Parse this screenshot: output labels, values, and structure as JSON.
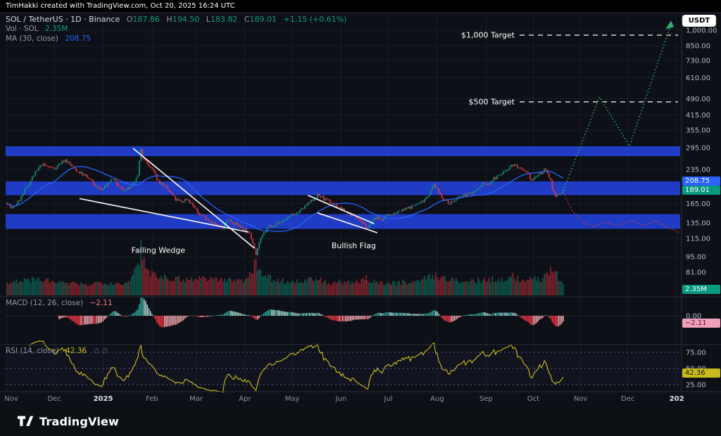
{
  "attribution": "TimHakki created with TradingView.com, Oct 20, 2025 16:24 UTC",
  "currency_button": "USDT",
  "legend": {
    "symbol_line": "SOL / TetherUS · 1D · Binance",
    "o_label": "O",
    "o": "187.86",
    "h_label": "H",
    "h": "194.50",
    "l_label": "L",
    "l": "183.82",
    "c_label": "C",
    "c": "189.01",
    "change": "+1.15 (+0.61%)",
    "vol_label": "Vol · SOL",
    "vol_value": "2.35M",
    "ma_label": "MA (30, close)",
    "ma_value": "208.75",
    "macd_label": "MACD (12, 26, close)",
    "macd_value": "−2.11",
    "rsi_label": "RSI (14, close)",
    "rsi_value": "42.36",
    "rsi_extra": "∅ ∅"
  },
  "badges": {
    "ma": "208.75",
    "close": "189.01",
    "volume": "2.35M",
    "macd_zero": "0.00",
    "macd": "−2.11",
    "rsi": "42.36"
  },
  "footer": {
    "brand": "TradingView"
  },
  "chart_data": {
    "type": "candlestick",
    "symbol": "SOL/USDT",
    "interval": "1D",
    "exchange": "Binance",
    "scale": "log",
    "last": {
      "o": 187.86,
      "h": 194.5,
      "l": 183.82,
      "c": 189.01,
      "change_abs": 1.15,
      "change_pct": 0.61
    },
    "days_total": 354,
    "seed": 7,
    "colors": {
      "up": "#0f9b80",
      "down": "#f23645",
      "vol_up": "rgba(15,155,128,0.55)",
      "vol_down": "rgba(242,54,69,0.55)",
      "ma": "#2962ff",
      "rsi": "#cdc21f",
      "band": "#2240d4",
      "proj_up": "#2fae71",
      "proj_down": "#f23645"
    },
    "y_ticks": [
      {
        "label": "1,000.00",
        "value": 1000
      },
      {
        "label": "850.00",
        "value": 850
      },
      {
        "label": "730.00",
        "value": 730
      },
      {
        "label": "610.00",
        "value": 610
      },
      {
        "label": "490.00",
        "value": 490
      },
      {
        "label": "415.00",
        "value": 415
      },
      {
        "label": "355.00",
        "value": 355
      },
      {
        "label": "295.00",
        "value": 295
      },
      {
        "label": "235.00",
        "value": 235
      },
      {
        "label": "165.00",
        "value": 165
      },
      {
        "label": "135.00",
        "value": 135
      },
      {
        "label": "115.00",
        "value": 115
      },
      {
        "label": "95.00",
        "value": 95
      },
      {
        "label": "81.00",
        "value": 81
      }
    ],
    "rsi_levels": [
      {
        "label": "75.00",
        "value": 75
      },
      {
        "label": "50.00",
        "value": 50
      },
      {
        "label": "25.00",
        "value": 25
      }
    ],
    "months": [
      {
        "label": "Nov",
        "day": 0
      },
      {
        "label": "Dec",
        "day": 30
      },
      {
        "label": "2025",
        "day": 61,
        "strong": true
      },
      {
        "label": "Feb",
        "day": 92
      },
      {
        "label": "Mar",
        "day": 120
      },
      {
        "label": "Apr",
        "day": 151
      },
      {
        "label": "May",
        "day": 181
      },
      {
        "label": "Jun",
        "day": 212
      },
      {
        "label": "Jul",
        "day": 242
      },
      {
        "label": "Aug",
        "day": 273
      },
      {
        "label": "Sep",
        "day": 304
      },
      {
        "label": "Oct",
        "day": 334
      },
      {
        "label": "Nov",
        "day": 364
      },
      {
        "label": "Dec",
        "day": 394
      },
      {
        "label": "202",
        "day": 425,
        "strong": true
      }
    ],
    "bands": [
      {
        "from": 270,
        "to": 300
      },
      {
        "from": 180,
        "to": 208
      },
      {
        "from": 127,
        "to": 148
      }
    ],
    "targets": [
      {
        "label": "$1,000 Target",
        "price": 1000
      },
      {
        "label": "$500 Target",
        "price": 500
      }
    ],
    "patterns": [
      {
        "label": "Falling Wedge",
        "label_pos": [
          96,
          99
        ],
        "segments": [
          [
            [
              80,
              293
            ],
            [
              157,
              104
            ]
          ],
          [
            [
              46,
              174
            ],
            [
              153,
              123
            ]
          ]
        ]
      },
      {
        "label": "Bullish Flag",
        "label_pos": [
          220,
          104
        ],
        "segments": [
          [
            [
              191,
              180
            ],
            [
              233,
              134
            ]
          ],
          [
            [
              197,
              150
            ],
            [
              235,
              122
            ]
          ]
        ]
      }
    ],
    "projections": {
      "green": {
        "points": [
          [
            353,
            189
          ],
          [
            376,
            500
          ],
          [
            395,
            300
          ],
          [
            421,
            1050
          ]
        ]
      },
      "red": {
        "points": [
          [
            353,
            186
          ],
          [
            359,
            152
          ],
          [
            365,
            137
          ],
          [
            372,
            130
          ],
          [
            380,
            136
          ],
          [
            388,
            131
          ],
          [
            396,
            139
          ],
          [
            404,
            132
          ],
          [
            412,
            138
          ],
          [
            420,
            128
          ],
          [
            427,
            122
          ]
        ]
      }
    },
    "price_anchors": [
      [
        0,
        167
      ],
      [
        3,
        156
      ],
      [
        8,
        172
      ],
      [
        14,
        205
      ],
      [
        18,
        228
      ],
      [
        22,
        248
      ],
      [
        26,
        242
      ],
      [
        30,
        238
      ],
      [
        34,
        252
      ],
      [
        37,
        260
      ],
      [
        41,
        244
      ],
      [
        45,
        230
      ],
      [
        49,
        222
      ],
      [
        53,
        210
      ],
      [
        57,
        196
      ],
      [
        60,
        190
      ],
      [
        63,
        200
      ],
      [
        67,
        214
      ],
      [
        71,
        196
      ],
      [
        75,
        190
      ],
      [
        79,
        196
      ],
      [
        83,
        220
      ],
      [
        85,
        293
      ],
      [
        86,
        270
      ],
      [
        88,
        256
      ],
      [
        90,
        244
      ],
      [
        93,
        230
      ],
      [
        96,
        208
      ],
      [
        100,
        197
      ],
      [
        104,
        184
      ],
      [
        107,
        172
      ],
      [
        111,
        168
      ],
      [
        114,
        174
      ],
      [
        118,
        162
      ],
      [
        121,
        150
      ],
      [
        125,
        144
      ],
      [
        129,
        138
      ],
      [
        133,
        131
      ],
      [
        137,
        128
      ],
      [
        140,
        141
      ],
      [
        143,
        136
      ],
      [
        147,
        131
      ],
      [
        151,
        126
      ],
      [
        154,
        120
      ],
      [
        157,
        106
      ],
      [
        158,
        97
      ],
      [
        160,
        110
      ],
      [
        163,
        121
      ],
      [
        166,
        130
      ],
      [
        170,
        133
      ],
      [
        174,
        137
      ],
      [
        178,
        142
      ],
      [
        181,
        147
      ],
      [
        185,
        151
      ],
      [
        189,
        160
      ],
      [
        193,
        169
      ],
      [
        197,
        180
      ],
      [
        200,
        176
      ],
      [
        203,
        170
      ],
      [
        207,
        166
      ],
      [
        211,
        158
      ],
      [
        214,
        153
      ],
      [
        218,
        148
      ],
      [
        222,
        144
      ],
      [
        226,
        135
      ],
      [
        228,
        127
      ],
      [
        231,
        136
      ],
      [
        234,
        143
      ],
      [
        238,
        140
      ],
      [
        242,
        146
      ],
      [
        246,
        150
      ],
      [
        250,
        153
      ],
      [
        254,
        157
      ],
      [
        258,
        162
      ],
      [
        262,
        166
      ],
      [
        266,
        176
      ],
      [
        269,
        188
      ],
      [
        271,
        202
      ],
      [
        273,
        190
      ],
      [
        276,
        176
      ],
      [
        280,
        166
      ],
      [
        284,
        170
      ],
      [
        288,
        178
      ],
      [
        292,
        182
      ],
      [
        296,
        186
      ],
      [
        300,
        196
      ],
      [
        302,
        204
      ],
      [
        305,
        200
      ],
      [
        308,
        212
      ],
      [
        312,
        220
      ],
      [
        316,
        232
      ],
      [
        319,
        243
      ],
      [
        322,
        248
      ],
      [
        325,
        238
      ],
      [
        328,
        230
      ],
      [
        331,
        222
      ],
      [
        333,
        210
      ],
      [
        336,
        220
      ],
      [
        339,
        228
      ],
      [
        341,
        234
      ],
      [
        343,
        228
      ],
      [
        345,
        210
      ],
      [
        346,
        192
      ],
      [
        348,
        181
      ],
      [
        350,
        178
      ],
      [
        352,
        185
      ],
      [
        353,
        189
      ]
    ],
    "volume_anchors": [
      [
        0,
        0.22
      ],
      [
        10,
        0.28
      ],
      [
        20,
        0.3
      ],
      [
        30,
        0.25
      ],
      [
        40,
        0.22
      ],
      [
        50,
        0.2
      ],
      [
        61,
        0.25
      ],
      [
        75,
        0.22
      ],
      [
        84,
        0.55
      ],
      [
        85,
        1.0
      ],
      [
        86,
        0.7
      ],
      [
        90,
        0.45
      ],
      [
        96,
        0.38
      ],
      [
        105,
        0.32
      ],
      [
        115,
        0.3
      ],
      [
        125,
        0.33
      ],
      [
        135,
        0.3
      ],
      [
        145,
        0.28
      ],
      [
        151,
        0.3
      ],
      [
        158,
        0.6
      ],
      [
        160,
        0.45
      ],
      [
        168,
        0.3
      ],
      [
        181,
        0.25
      ],
      [
        190,
        0.28
      ],
      [
        197,
        0.3
      ],
      [
        205,
        0.22
      ],
      [
        212,
        0.25
      ],
      [
        220,
        0.22
      ],
      [
        228,
        0.32
      ],
      [
        235,
        0.25
      ],
      [
        242,
        0.22
      ],
      [
        252,
        0.25
      ],
      [
        262,
        0.28
      ],
      [
        271,
        0.38
      ],
      [
        280,
        0.3
      ],
      [
        290,
        0.25
      ],
      [
        300,
        0.28
      ],
      [
        308,
        0.3
      ],
      [
        317,
        0.32
      ],
      [
        321,
        0.35
      ],
      [
        328,
        0.28
      ],
      [
        334,
        0.3
      ],
      [
        340,
        0.32
      ],
      [
        346,
        0.55
      ],
      [
        350,
        0.3
      ],
      [
        353,
        0.2
      ]
    ]
  }
}
